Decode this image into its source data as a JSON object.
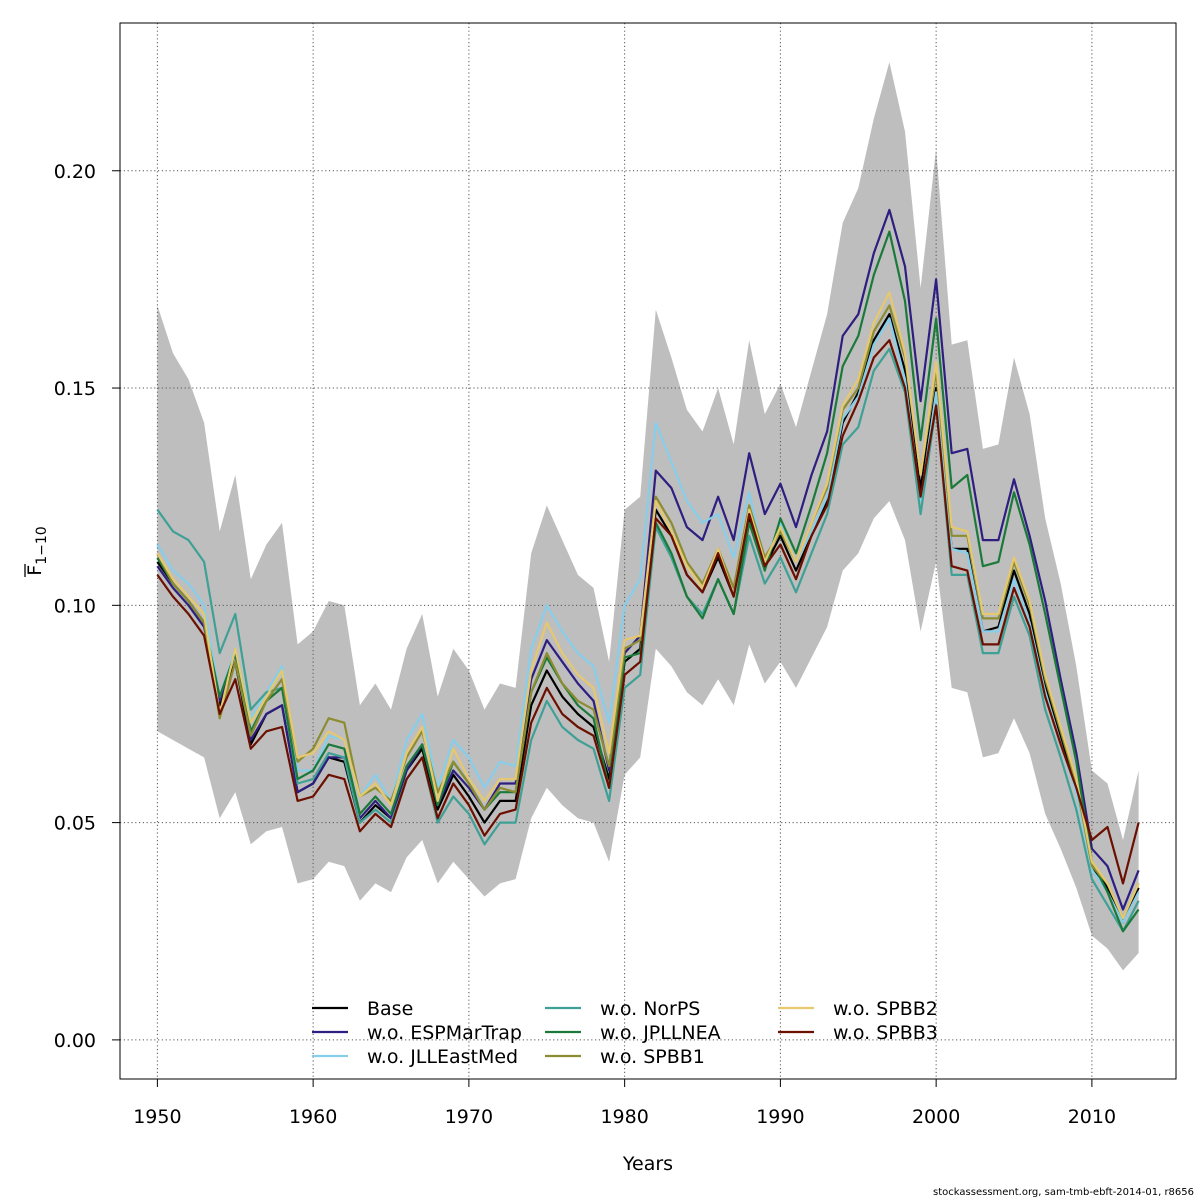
{
  "chart_data": {
    "type": "line",
    "title": "",
    "xlabel": "Years",
    "ylabel": "F̅₁₋₁₀",
    "ylabel_main": "F",
    "ylabel_sub": "1−10",
    "xlim": [
      1947.6,
      2015.4
    ],
    "ylim": [
      -0.009,
      0.234
    ],
    "x_ticks": [
      1950,
      1960,
      1970,
      1980,
      1990,
      2000,
      2010
    ],
    "y_ticks": [
      0.0,
      0.05,
      0.1,
      0.15,
      0.2
    ],
    "y_tick_labels": [
      "0.00",
      "0.05",
      "0.10",
      "0.15",
      "0.20"
    ],
    "grid": true,
    "legend_position": "bottom-center",
    "x": [
      1950,
      1951,
      1952,
      1953,
      1954,
      1955,
      1956,
      1957,
      1958,
      1959,
      1960,
      1961,
      1962,
      1963,
      1964,
      1965,
      1966,
      1967,
      1968,
      1969,
      1970,
      1971,
      1972,
      1973,
      1974,
      1975,
      1976,
      1977,
      1978,
      1979,
      1980,
      1981,
      1982,
      1983,
      1984,
      1985,
      1986,
      1987,
      1988,
      1989,
      1990,
      1991,
      1992,
      1993,
      1994,
      1995,
      1996,
      1997,
      1998,
      1999,
      2000,
      2001,
      2002,
      2003,
      2004,
      2005,
      2006,
      2007,
      2008,
      2009,
      2010,
      2011,
      2012,
      2013
    ],
    "confidence_band": {
      "color": "#bebebe",
      "upper": [
        0.169,
        0.158,
        0.152,
        0.142,
        0.117,
        0.13,
        0.106,
        0.114,
        0.119,
        0.091,
        0.094,
        0.101,
        0.1,
        0.077,
        0.082,
        0.076,
        0.09,
        0.098,
        0.079,
        0.09,
        0.085,
        0.076,
        0.082,
        0.081,
        0.112,
        0.123,
        0.115,
        0.107,
        0.104,
        0.087,
        0.122,
        0.125,
        0.168,
        0.157,
        0.145,
        0.14,
        0.15,
        0.137,
        0.161,
        0.144,
        0.151,
        0.141,
        0.154,
        0.167,
        0.188,
        0.196,
        0.212,
        0.225,
        0.209,
        0.173,
        0.205,
        0.16,
        0.161,
        0.136,
        0.137,
        0.157,
        0.144,
        0.12,
        0.105,
        0.086,
        0.062,
        0.059,
        0.046,
        0.062
      ],
      "lower": [
        0.071,
        0.069,
        0.067,
        0.065,
        0.051,
        0.057,
        0.045,
        0.048,
        0.049,
        0.036,
        0.037,
        0.041,
        0.04,
        0.032,
        0.036,
        0.034,
        0.042,
        0.046,
        0.036,
        0.041,
        0.037,
        0.033,
        0.036,
        0.037,
        0.051,
        0.058,
        0.054,
        0.051,
        0.05,
        0.041,
        0.061,
        0.065,
        0.09,
        0.086,
        0.08,
        0.077,
        0.083,
        0.077,
        0.091,
        0.082,
        0.087,
        0.081,
        0.088,
        0.095,
        0.108,
        0.112,
        0.12,
        0.124,
        0.115,
        0.094,
        0.11,
        0.081,
        0.08,
        0.065,
        0.066,
        0.074,
        0.066,
        0.052,
        0.044,
        0.035,
        0.024,
        0.021,
        0.016,
        0.02
      ]
    },
    "series": [
      {
        "name": "Base",
        "color": "#000000",
        "values": [
          0.11,
          0.105,
          0.101,
          0.096,
          0.077,
          0.087,
          0.068,
          0.075,
          0.077,
          0.057,
          0.059,
          0.065,
          0.064,
          0.05,
          0.054,
          0.051,
          0.062,
          0.067,
          0.053,
          0.061,
          0.056,
          0.05,
          0.055,
          0.055,
          0.077,
          0.085,
          0.079,
          0.075,
          0.072,
          0.06,
          0.087,
          0.09,
          0.122,
          0.116,
          0.107,
          0.103,
          0.111,
          0.102,
          0.12,
          0.109,
          0.116,
          0.108,
          0.116,
          0.124,
          0.142,
          0.149,
          0.161,
          0.167,
          0.154,
          0.127,
          0.15,
          0.113,
          0.113,
          0.094,
          0.095,
          0.108,
          0.098,
          0.082,
          0.07,
          0.058,
          0.04,
          0.035,
          0.027,
          0.035
        ]
      },
      {
        "name": "w.o. ESPMarTrap",
        "color": "#2e1e80",
        "values": [
          0.109,
          0.104,
          0.1,
          0.095,
          0.078,
          0.089,
          0.069,
          0.075,
          0.077,
          0.057,
          0.059,
          0.065,
          0.065,
          0.051,
          0.055,
          0.051,
          0.062,
          0.068,
          0.054,
          0.062,
          0.058,
          0.053,
          0.059,
          0.059,
          0.083,
          0.092,
          0.087,
          0.082,
          0.078,
          0.062,
          0.089,
          0.093,
          0.131,
          0.127,
          0.118,
          0.115,
          0.125,
          0.115,
          0.135,
          0.121,
          0.128,
          0.118,
          0.13,
          0.14,
          0.162,
          0.167,
          0.181,
          0.191,
          0.178,
          0.147,
          0.175,
          0.135,
          0.136,
          0.115,
          0.115,
          0.129,
          0.116,
          0.101,
          0.083,
          0.066,
          0.044,
          0.04,
          0.03,
          0.039
        ]
      },
      {
        "name": "w.o. JLLEastMed",
        "color": "#87ceeb",
        "values": [
          0.114,
          0.108,
          0.105,
          0.1,
          0.079,
          0.09,
          0.074,
          0.08,
          0.086,
          0.062,
          0.062,
          0.07,
          0.069,
          0.056,
          0.061,
          0.055,
          0.069,
          0.075,
          0.058,
          0.069,
          0.065,
          0.058,
          0.064,
          0.063,
          0.09,
          0.1,
          0.094,
          0.089,
          0.086,
          0.073,
          0.1,
          0.106,
          0.142,
          0.133,
          0.124,
          0.119,
          0.121,
          0.111,
          0.126,
          0.11,
          0.119,
          0.11,
          0.117,
          0.125,
          0.143,
          0.148,
          0.16,
          0.166,
          0.152,
          0.124,
          0.149,
          0.113,
          0.112,
          0.094,
          0.094,
          0.106,
          0.096,
          0.08,
          0.068,
          0.057,
          0.039,
          0.034,
          0.027,
          0.034
        ]
      },
      {
        "name": "w.o. NorPS",
        "color": "#3fa095",
        "values": [
          0.122,
          0.117,
          0.115,
          0.11,
          0.089,
          0.098,
          0.076,
          0.08,
          0.081,
          0.059,
          0.06,
          0.066,
          0.065,
          0.05,
          0.053,
          0.05,
          0.06,
          0.065,
          0.05,
          0.056,
          0.052,
          0.045,
          0.05,
          0.05,
          0.069,
          0.078,
          0.072,
          0.069,
          0.067,
          0.055,
          0.081,
          0.084,
          0.118,
          0.111,
          0.102,
          0.098,
          0.106,
          0.098,
          0.116,
          0.105,
          0.111,
          0.103,
          0.112,
          0.121,
          0.137,
          0.141,
          0.154,
          0.159,
          0.149,
          0.121,
          0.146,
          0.107,
          0.107,
          0.089,
          0.089,
          0.102,
          0.093,
          0.076,
          0.065,
          0.053,
          0.037,
          0.031,
          0.025,
          0.032
        ]
      },
      {
        "name": "w.o. JPLLNEA",
        "color": "#1b7a3a",
        "values": [
          0.111,
          0.105,
          0.101,
          0.096,
          0.079,
          0.089,
          0.071,
          0.078,
          0.081,
          0.06,
          0.062,
          0.068,
          0.067,
          0.052,
          0.056,
          0.052,
          0.063,
          0.068,
          0.054,
          0.064,
          0.059,
          0.053,
          0.057,
          0.057,
          0.08,
          0.088,
          0.082,
          0.077,
          0.074,
          0.058,
          0.088,
          0.089,
          0.119,
          0.112,
          0.102,
          0.097,
          0.106,
          0.098,
          0.119,
          0.108,
          0.12,
          0.112,
          0.123,
          0.135,
          0.155,
          0.162,
          0.176,
          0.186,
          0.17,
          0.138,
          0.166,
          0.127,
          0.13,
          0.109,
          0.11,
          0.126,
          0.114,
          0.098,
          0.081,
          0.064,
          0.041,
          0.034,
          0.025,
          0.03
        ]
      },
      {
        "name": "w.o. SPBB1",
        "color": "#8c8c32",
        "values": [
          0.112,
          0.105,
          0.101,
          0.096,
          0.074,
          0.087,
          0.07,
          0.078,
          0.083,
          0.064,
          0.067,
          0.074,
          0.073,
          0.056,
          0.058,
          0.055,
          0.065,
          0.071,
          0.057,
          0.064,
          0.059,
          0.053,
          0.058,
          0.057,
          0.08,
          0.089,
          0.082,
          0.078,
          0.076,
          0.063,
          0.09,
          0.092,
          0.125,
          0.119,
          0.11,
          0.105,
          0.113,
          0.104,
          0.123,
          0.111,
          0.117,
          0.11,
          0.119,
          0.127,
          0.145,
          0.15,
          0.163,
          0.169,
          0.157,
          0.13,
          0.154,
          0.116,
          0.116,
          0.097,
          0.097,
          0.11,
          0.1,
          0.083,
          0.071,
          0.059,
          0.04,
          0.036,
          0.028,
          0.036
        ]
      },
      {
        "name": "w.o. SPBB2",
        "color": "#e6c86e",
        "values": [
          0.112,
          0.106,
          0.102,
          0.098,
          0.075,
          0.09,
          0.073,
          0.079,
          0.085,
          0.065,
          0.066,
          0.071,
          0.069,
          0.056,
          0.059,
          0.054,
          0.066,
          0.072,
          0.055,
          0.067,
          0.06,
          0.055,
          0.06,
          0.06,
          0.085,
          0.096,
          0.089,
          0.084,
          0.081,
          0.066,
          0.092,
          0.093,
          0.124,
          0.117,
          0.109,
          0.104,
          0.113,
          0.102,
          0.122,
          0.11,
          0.118,
          0.11,
          0.119,
          0.128,
          0.146,
          0.152,
          0.165,
          0.172,
          0.158,
          0.13,
          0.156,
          0.118,
          0.117,
          0.098,
          0.098,
          0.111,
          0.101,
          0.084,
          0.072,
          0.06,
          0.041,
          0.036,
          0.028,
          0.036
        ]
      },
      {
        "name": "w.o. SPBB3",
        "color": "#6b0f00",
        "values": [
          0.107,
          0.102,
          0.098,
          0.093,
          0.075,
          0.083,
          0.067,
          0.071,
          0.072,
          0.055,
          0.056,
          0.061,
          0.06,
          0.048,
          0.052,
          0.049,
          0.06,
          0.065,
          0.051,
          0.059,
          0.054,
          0.047,
          0.052,
          0.053,
          0.073,
          0.081,
          0.075,
          0.072,
          0.07,
          0.058,
          0.084,
          0.087,
          0.12,
          0.116,
          0.107,
          0.103,
          0.112,
          0.102,
          0.121,
          0.109,
          0.114,
          0.106,
          0.116,
          0.123,
          0.139,
          0.147,
          0.157,
          0.161,
          0.15,
          0.125,
          0.146,
          0.109,
          0.108,
          0.091,
          0.091,
          0.104,
          0.095,
          0.079,
          0.068,
          0.058,
          0.046,
          0.049,
          0.036,
          0.05
        ]
      }
    ]
  },
  "footer": {
    "text": "stockassessment.org, sam-tmb-ebft-2014-01, r8656"
  }
}
